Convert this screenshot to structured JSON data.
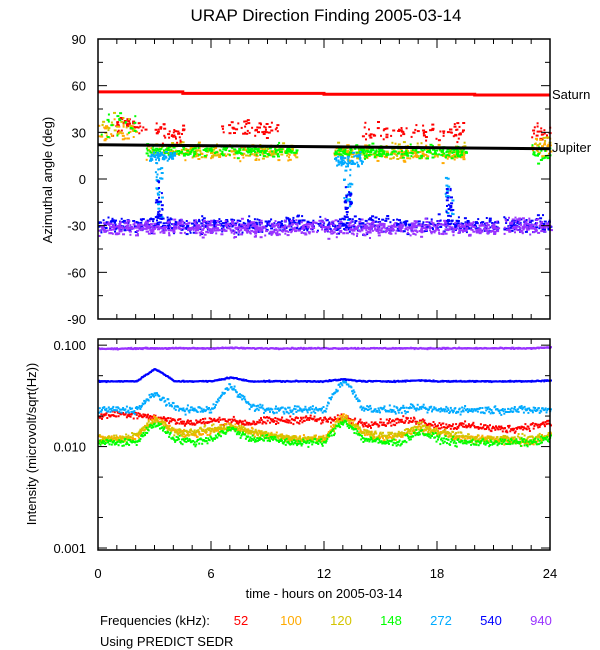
{
  "chart_data": [
    {
      "type": "scatter",
      "title": "URAP Direction Finding  2005-03-14",
      "ylabel": "Azimuthal angle (deg)",
      "xlim": [
        0,
        24
      ],
      "ylim": [
        -90,
        90
      ],
      "x_ticks": [
        "0",
        "6",
        "12",
        "18",
        "24"
      ],
      "y_ticks": [
        "90",
        "60",
        "30",
        "0",
        "-30",
        "-60",
        "-90"
      ],
      "reference_lines": [
        {
          "name": "Saturn",
          "color": "#ff0000",
          "x": [
            0,
            4.5,
            4.5,
            12,
            12,
            20,
            20,
            24
          ],
          "y": [
            56,
            56,
            55,
            55,
            54.5,
            54.5,
            54,
            54
          ]
        },
        {
          "name": "Jupiter",
          "color": "#000000",
          "x": [
            0,
            24
          ],
          "y": [
            22,
            19.5
          ]
        }
      ],
      "series_clusters": [
        {
          "freq": "52",
          "color": "#ff0000",
          "clusters": [
            [
              0.5,
              2.5,
              35,
              6,
              40
            ],
            [
              3,
              4.5,
              30,
              6,
              40
            ],
            [
              6.5,
              9.5,
              33,
              6,
              50
            ],
            [
              14,
              19.5,
              31,
              6,
              80
            ],
            [
              23,
              24,
              30,
              5,
              20
            ]
          ]
        },
        {
          "freq": "100",
          "color": "#ffaa00",
          "clusters": [
            [
              0,
              2,
              32,
              8,
              30
            ],
            [
              2.5,
              10.5,
              18,
              5,
              140
            ],
            [
              12.5,
              19.5,
              17,
              5,
              140
            ],
            [
              23,
              24,
              20,
              6,
              20
            ]
          ]
        },
        {
          "freq": "120",
          "color": "#d4c400",
          "clusters": [
            [
              0,
              2,
              35,
              8,
              20
            ],
            [
              2.5,
              10.5,
              19,
              5,
              110
            ],
            [
              12.5,
              19.5,
              18,
              5,
              110
            ],
            [
              23,
              24,
              22,
              6,
              15
            ]
          ]
        },
        {
          "freq": "148",
          "color": "#00ff00",
          "clusters": [
            [
              0,
              2,
              38,
              9,
              20
            ],
            [
              2.5,
              10.5,
              19,
              4,
              200
            ],
            [
              12.5,
              19.5,
              18,
              4,
              200
            ],
            [
              23,
              24,
              16,
              6,
              20
            ]
          ]
        },
        {
          "freq": "272",
          "color": "#00aaff",
          "clusters": [
            [
              2.7,
              4,
              15,
              4,
              50
            ],
            [
              12.5,
              14,
              13,
              4,
              60
            ],
            [
              3,
              3.4,
              -5,
              18,
              25
            ],
            [
              13,
              13.4,
              -5,
              18,
              25
            ],
            [
              18.4,
              18.8,
              -10,
              18,
              15
            ]
          ]
        },
        {
          "freq": "540",
          "color": "#0000ff",
          "clusters": [
            [
              0,
              21.2,
              -29,
              5,
              700
            ],
            [
              21.5,
              24,
              -29,
              5,
              90
            ],
            [
              3,
              3.4,
              -15,
              15,
              25
            ],
            [
              13,
              13.4,
              -15,
              15,
              25
            ],
            [
              18.4,
              18.8,
              -15,
              14,
              20
            ]
          ]
        },
        {
          "freq": "940",
          "color": "#9933ff",
          "clusters": [
            [
              0,
              21.2,
              -31,
              5,
              800
            ],
            [
              21.5,
              24,
              -30,
              5,
              100
            ]
          ]
        }
      ]
    },
    {
      "type": "line",
      "ylabel": "Intensity (microvolt/sqrt(Hz))",
      "xlabel": "time - hours on 2005-03-14",
      "xlim": [
        0,
        24
      ],
      "ylim": [
        0.001,
        0.115
      ],
      "yscale": "log",
      "x_ticks": [
        "0",
        "6",
        "12",
        "18",
        "24"
      ],
      "y_ticks": [
        "0.100",
        "0.010",
        "0.001"
      ],
      "x": [
        0,
        1,
        2,
        3,
        4,
        5,
        6,
        7,
        8,
        9,
        10,
        11,
        12,
        13,
        14,
        15,
        16,
        17,
        18,
        19,
        20,
        21,
        22,
        23,
        24
      ],
      "series": [
        {
          "freq": "52",
          "color": "#ff0000",
          "values": [
            0.02,
            0.021,
            0.021,
            0.019,
            0.018,
            0.017,
            0.018,
            0.018,
            0.017,
            0.018,
            0.018,
            0.019,
            0.018,
            0.019,
            0.017,
            0.017,
            0.018,
            0.018,
            0.016,
            0.016,
            0.016,
            0.015,
            0.015,
            0.016,
            0.017
          ]
        },
        {
          "freq": "100",
          "color": "#ffaa00",
          "values": [
            0.012,
            0.012,
            0.012,
            0.019,
            0.014,
            0.013,
            0.014,
            0.016,
            0.014,
            0.013,
            0.012,
            0.012,
            0.012,
            0.02,
            0.014,
            0.012,
            0.013,
            0.015,
            0.014,
            0.012,
            0.012,
            0.012,
            0.011,
            0.011,
            0.013
          ]
        },
        {
          "freq": "120",
          "color": "#d4c400",
          "values": [
            0.012,
            0.012,
            0.013,
            0.018,
            0.014,
            0.014,
            0.015,
            0.016,
            0.014,
            0.013,
            0.012,
            0.012,
            0.012,
            0.019,
            0.014,
            0.013,
            0.013,
            0.016,
            0.014,
            0.013,
            0.012,
            0.012,
            0.012,
            0.012,
            0.013
          ]
        },
        {
          "freq": "148",
          "color": "#00ff00",
          "values": [
            0.011,
            0.011,
            0.011,
            0.017,
            0.012,
            0.011,
            0.012,
            0.015,
            0.012,
            0.012,
            0.011,
            0.011,
            0.011,
            0.018,
            0.012,
            0.011,
            0.011,
            0.014,
            0.012,
            0.011,
            0.011,
            0.011,
            0.011,
            0.011,
            0.012
          ]
        },
        {
          "freq": "272",
          "color": "#00aaff",
          "values": [
            0.023,
            0.023,
            0.023,
            0.033,
            0.024,
            0.023,
            0.023,
            0.04,
            0.025,
            0.023,
            0.023,
            0.023,
            0.023,
            0.045,
            0.024,
            0.023,
            0.023,
            0.024,
            0.023,
            0.023,
            0.023,
            0.023,
            0.023,
            0.023,
            0.023
          ]
        },
        {
          "freq": "540",
          "color": "#0000ff",
          "values": [
            0.044,
            0.044,
            0.044,
            0.058,
            0.044,
            0.044,
            0.044,
            0.048,
            0.044,
            0.044,
            0.044,
            0.044,
            0.044,
            0.046,
            0.044,
            0.044,
            0.044,
            0.045,
            0.044,
            0.044,
            0.044,
            0.044,
            0.044,
            0.044,
            0.045
          ]
        },
        {
          "freq": "940",
          "color": "#9933ff",
          "values": [
            0.092,
            0.092,
            0.093,
            0.093,
            0.093,
            0.093,
            0.093,
            0.094,
            0.093,
            0.093,
            0.093,
            0.093,
            0.093,
            0.093,
            0.093,
            0.093,
            0.093,
            0.093,
            0.093,
            0.093,
            0.093,
            0.093,
            0.093,
            0.093,
            0.095
          ]
        }
      ]
    }
  ],
  "title": "URAP Direction Finding  2005-03-14",
  "labels": {
    "saturn": "Saturn",
    "jupiter": "Jupiter"
  },
  "legend": {
    "prefix": "Frequencies (kHz):",
    "items": [
      {
        "label": "52",
        "color": "#ff0000"
      },
      {
        "label": "100",
        "color": "#ffaa00"
      },
      {
        "label": "120",
        "color": "#d4c400"
      },
      {
        "label": "148",
        "color": "#00ff00"
      },
      {
        "label": "272",
        "color": "#00aaff"
      },
      {
        "label": "540",
        "color": "#0000ff"
      },
      {
        "label": "940",
        "color": "#9933ff"
      }
    ]
  },
  "footnote": "Using PREDICT SEDR"
}
